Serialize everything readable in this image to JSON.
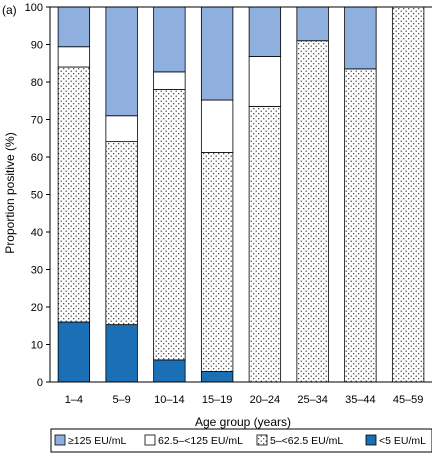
{
  "panel_label": "(a)",
  "chart_data": {
    "type": "bar",
    "stacked": true,
    "categories": [
      "1–4",
      "5–9",
      "10–14",
      "15–19",
      "20–24",
      "25–34",
      "35–44",
      "45–59"
    ],
    "series": [
      {
        "name": "<5 EU/mL",
        "pattern": "solid-dark",
        "color": "#1a6fb5",
        "values": [
          16,
          15.3,
          5.9,
          2.8,
          0,
          0,
          0,
          0
        ]
      },
      {
        "name": "5–<62.5 EU/mL",
        "pattern": "dotted",
        "color": "#ffffff",
        "values": [
          68,
          48.8,
          72.1,
          58.4,
          73.5,
          91,
          83.5,
          100
        ]
      },
      {
        "name": "62.5–<125 EU/mL",
        "pattern": "white",
        "color": "#ffffff",
        "values": [
          5.4,
          6.9,
          4.7,
          14,
          13.3,
          0,
          0,
          0
        ]
      },
      {
        "name": "≥125 EU/mL",
        "pattern": "solid-light",
        "color": "#8fb0df",
        "values": [
          10.6,
          29,
          17.3,
          24.8,
          13.2,
          9,
          16.5,
          0
        ]
      }
    ],
    "legend_order": [
      "≥125 EU/mL",
      "62.5–<125 EU/mL",
      "5–<62.5 EU/mL",
      "<5 EU/mL"
    ],
    "xlabel": "Age group (years)",
    "ylabel": "Proportion positive (%)",
    "ylim": [
      0,
      100
    ],
    "yticks": [
      0,
      10,
      20,
      30,
      40,
      50,
      60,
      70,
      80,
      90,
      100
    ],
    "grid": false,
    "legend_position": "bottom"
  }
}
